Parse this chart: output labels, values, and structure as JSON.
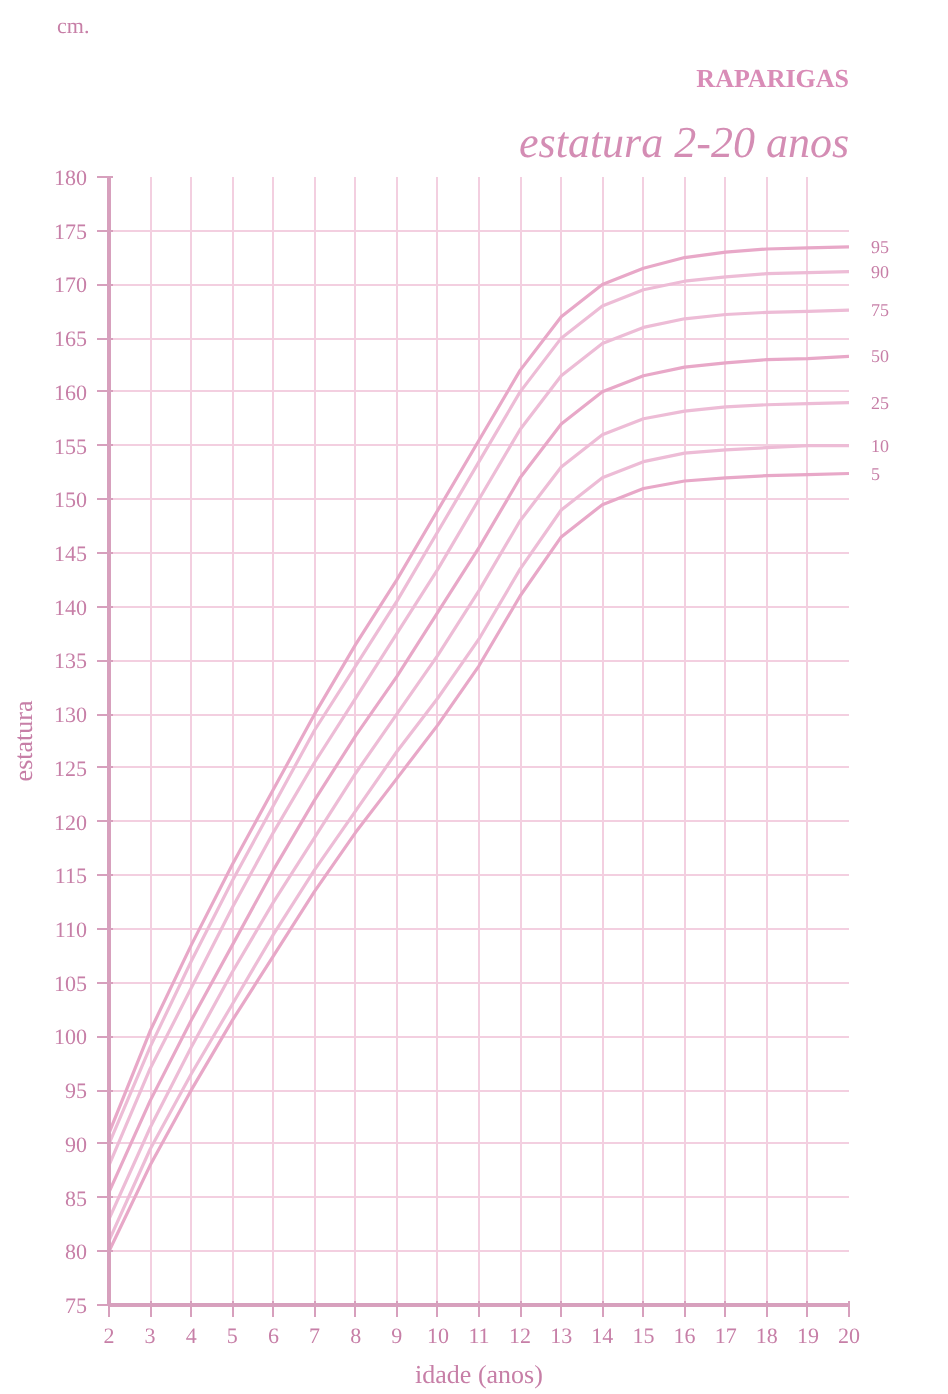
{
  "chart_data": {
    "type": "line",
    "title": "estatura 2-20 anos",
    "subtitle": "RAPARIGAS",
    "xlabel": "idade (anos)",
    "ylabel": "estatura",
    "annotations": [
      "cm."
    ],
    "x": [
      2,
      3,
      4,
      5,
      6,
      7,
      8,
      9,
      10,
      11,
      12,
      13,
      14,
      15,
      16,
      17,
      18,
      19,
      20
    ],
    "series": [
      {
        "name": "95",
        "color": "#e8a8c8",
        "values": [
          91,
          100.5,
          108.5,
          116,
          123,
          130,
          136.5,
          142.5,
          149,
          155.5,
          162,
          167,
          170,
          171.5,
          172.5,
          173,
          173.3,
          173.4,
          173.5
        ]
      },
      {
        "name": "90",
        "color": "#edbcd6",
        "values": [
          90,
          99,
          107,
          114.5,
          121.5,
          128.5,
          134.5,
          140.5,
          147,
          153.5,
          160,
          165,
          168,
          169.5,
          170.3,
          170.7,
          171,
          171.1,
          171.2
        ]
      },
      {
        "name": "75",
        "color": "#edbcd6",
        "values": [
          88,
          97,
          104.5,
          112,
          119,
          125.5,
          131.5,
          137.5,
          143.5,
          150,
          156.5,
          161.5,
          164.5,
          166,
          166.8,
          167.2,
          167.4,
          167.5,
          167.6
        ]
      },
      {
        "name": "50",
        "color": "#e8a8c8",
        "values": [
          85.5,
          94,
          101.5,
          108.5,
          115.5,
          122,
          128,
          133.5,
          139.5,
          145.5,
          152,
          157,
          160,
          161.5,
          162.3,
          162.7,
          163,
          163.1,
          163.3
        ]
      },
      {
        "name": "25",
        "color": "#edbcd6",
        "values": [
          83,
          91.5,
          99,
          106,
          112.5,
          118.5,
          124.5,
          130,
          135.5,
          141.5,
          148,
          153,
          156,
          157.5,
          158.2,
          158.6,
          158.8,
          158.9,
          159
        ]
      },
      {
        "name": "10",
        "color": "#edbcd6",
        "values": [
          81,
          89.5,
          96.5,
          103,
          109.5,
          115.5,
          121,
          126.5,
          131.5,
          137,
          143.5,
          149,
          152,
          153.5,
          154.3,
          154.6,
          154.8,
          155,
          155
        ]
      },
      {
        "name": "5",
        "color": "#e8a8c8",
        "values": [
          80,
          88,
          95,
          101.5,
          107.5,
          113.5,
          119,
          124,
          129,
          134.5,
          141,
          146.5,
          149.5,
          151,
          151.7,
          152,
          152.2,
          152.3,
          152.4
        ]
      }
    ],
    "xlim": [
      2,
      20
    ],
    "xticks": [
      2,
      3,
      4,
      5,
      6,
      7,
      8,
      9,
      10,
      11,
      12,
      13,
      14,
      15,
      16,
      17,
      18,
      19,
      20
    ],
    "ylim": [
      75,
      180
    ],
    "yticks": [
      75,
      80,
      85,
      90,
      95,
      100,
      105,
      110,
      115,
      120,
      125,
      130,
      135,
      140,
      145,
      150,
      155,
      160,
      165,
      170,
      175,
      180
    ],
    "grid": true,
    "marker": "none",
    "line_style": "solid"
  }
}
